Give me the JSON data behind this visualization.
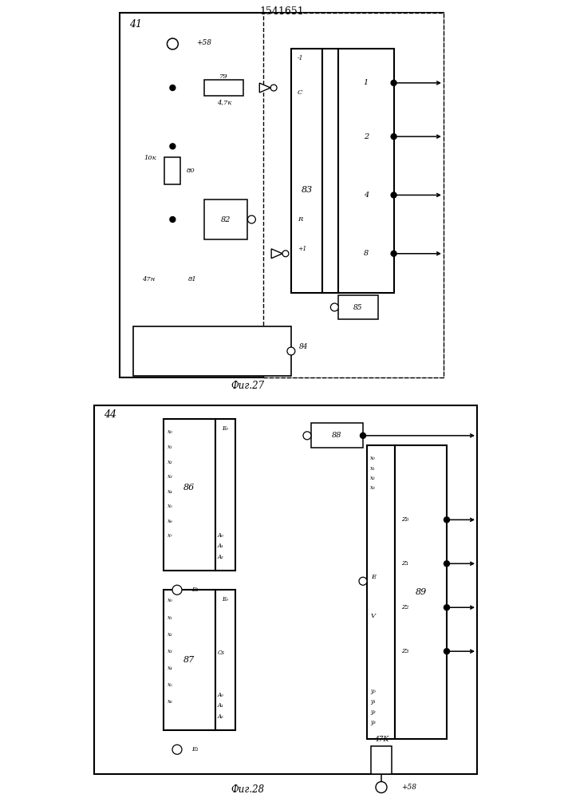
{
  "title": "1541651",
  "fig27_caption": "Фиг.27",
  "fig28_caption": "Фиг.28",
  "fig27_label": "41",
  "fig28_label": "44",
  "fig27": {
    "power_label": "+58",
    "r79_label": "79",
    "r79_val": "4,7к",
    "r80_label": "80",
    "r80_val": "10к",
    "cap_label": "47н",
    "cap_num": "81",
    "b82_label": "82",
    "cnt_label": "83",
    "dec_label": "",
    "b85_label": "85",
    "b84_label": "84",
    "minus1": "-1",
    "C_lbl": "C",
    "R_lbl": "R",
    "plus1": "+1",
    "out_labels": [
      "1",
      "2",
      "4",
      "8"
    ]
  },
  "fig28": {
    "b86_label": "86",
    "b87_label": "87",
    "b88_label": "88",
    "b89_label": "89",
    "x86": [
      "x₀",
      "x₁",
      "x₂",
      "x₃",
      "x₄",
      "x₅",
      "x₆",
      "x₇"
    ],
    "x87": [
      "x₀",
      "x₁",
      "x₂",
      "x₃",
      "x₄",
      "x₅",
      "x₆"
    ],
    "a86": [
      "A₀",
      "A₁",
      "A₂"
    ],
    "a87": [
      "A₀",
      "A₁",
      "A₂"
    ],
    "x89": [
      "x₀",
      "x₁",
      "x₂",
      "x₃"
    ],
    "y89": [
      "y₀",
      "y₁",
      "y₂",
      "y₃"
    ],
    "z89": [
      "Z₀",
      "Z₁",
      "Z₂",
      "Z₃"
    ],
    "E0_lbl": "E₀",
    "E1_lbl": "E₁",
    "Cs_lbl": "Cs",
    "E_lbl": "E",
    "V_lbl": "V",
    "res_lbl": "47K",
    "pwr_lbl": "+58"
  }
}
